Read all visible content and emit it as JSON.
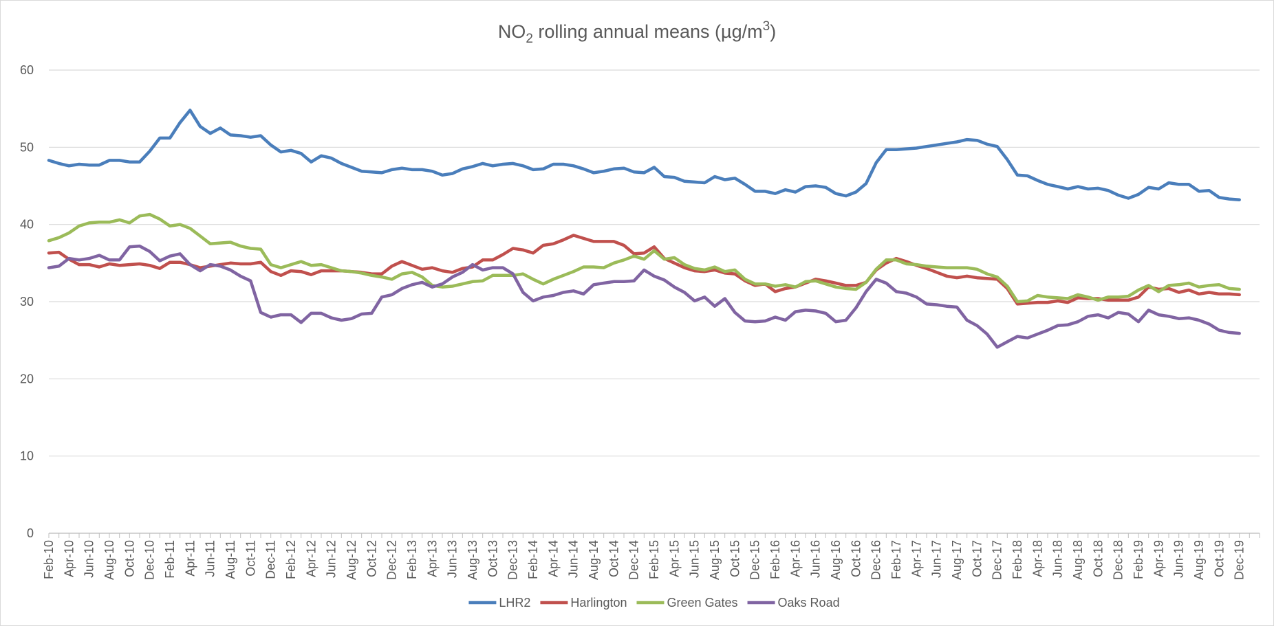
{
  "chart_data": {
    "type": "line",
    "title": [
      "NO",
      "2",
      " rolling annual means (µg/m",
      "3",
      ")"
    ],
    "categories": [
      "Feb-10",
      null,
      "Apr-10",
      null,
      "Jun-10",
      null,
      "Aug-10",
      null,
      "Oct-10",
      null,
      "Dec-10",
      null,
      "Feb-11",
      null,
      "Apr-11",
      null,
      "Jun-11",
      null,
      "Aug-11",
      null,
      "Oct-11",
      null,
      "Dec-11",
      null,
      "Feb-12",
      null,
      "Apr-12",
      null,
      "Jun-12",
      null,
      "Aug-12",
      null,
      "Oct-12",
      null,
      "Dec-12",
      null,
      "Feb-13",
      null,
      "Apr-13",
      null,
      "Jun-13",
      null,
      "Aug-13",
      null,
      "Oct-13",
      null,
      "Dec-13",
      null,
      "Feb-14",
      null,
      "Apr-14",
      null,
      "Jun-14",
      null,
      "Aug-14",
      null,
      "Oct-14",
      null,
      "Dec-14",
      null,
      "Feb-15",
      null,
      "Apr-15",
      null,
      "Jun-15",
      null,
      "Aug-15",
      null,
      "Oct-15",
      null,
      "Dec-15",
      null,
      "Feb-16",
      null,
      "Apr-16",
      null,
      "Jun-16",
      null,
      "Aug-16",
      null,
      "Oct-16",
      null,
      "Dec-16",
      null,
      "Feb-17",
      null,
      "Apr-17",
      null,
      "Jun-17",
      null,
      "Aug-17",
      null,
      "Oct-17",
      null,
      "Dec-17",
      null,
      "Feb-18",
      null,
      "Apr-18",
      null,
      "Jun-18",
      null,
      "Aug-18",
      null,
      "Oct-18",
      null,
      "Dec-18",
      null,
      "Feb-19",
      null,
      "Apr-19",
      null,
      "Jun-19",
      null,
      "Aug-19",
      null,
      "Oct-19",
      null,
      "Dec-19"
    ],
    "series": [
      {
        "name": "LHR2",
        "color": "#4a7ebb",
        "values": [
          48.3,
          47.9,
          47.6,
          47.8,
          47.7,
          47.7,
          48.3,
          48.3,
          48.1,
          48.1,
          49.5,
          51.2,
          51.2,
          53.2,
          54.8,
          52.7,
          51.8,
          52.5,
          51.6,
          51.5,
          51.3,
          51.5,
          50.3,
          49.4,
          49.6,
          49.2,
          48.1,
          48.9,
          48.6,
          47.9,
          47.4,
          46.9,
          46.8,
          46.7,
          47.1,
          47.3,
          47.1,
          47.1,
          46.9,
          46.4,
          46.6,
          47.2,
          47.5,
          47.9,
          47.6,
          47.8,
          47.9,
          47.6,
          47.1,
          47.2,
          47.8,
          47.8,
          47.6,
          47.2,
          46.7,
          46.9,
          47.2,
          47.3,
          46.8,
          46.7,
          47.4,
          46.2,
          46.1,
          45.6,
          45.5,
          45.4,
          46.2,
          45.8,
          46.0,
          45.2,
          44.3,
          44.3,
          44.0,
          44.5,
          44.2,
          44.9,
          45.0,
          44.8,
          44.0,
          43.7,
          44.2,
          45.3,
          48.0,
          49.7,
          49.7,
          49.8,
          49.9,
          50.1,
          50.3,
          50.5,
          50.7,
          51.0,
          50.9,
          50.4,
          50.1,
          48.4,
          46.4,
          46.3,
          45.7,
          45.2,
          44.9,
          44.6,
          44.9,
          44.6,
          44.7,
          44.4,
          43.8,
          43.4,
          43.9,
          44.8,
          44.6,
          45.4,
          45.2,
          45.2,
          44.3,
          44.4,
          43.5,
          43.3,
          43.2
        ]
      },
      {
        "name": "Harlington",
        "color": "#c0504d",
        "values": [
          36.3,
          36.4,
          35.5,
          34.8,
          34.8,
          34.5,
          34.9,
          34.7,
          34.8,
          34.9,
          34.7,
          34.3,
          35.1,
          35.1,
          34.8,
          34.4,
          34.6,
          34.8,
          35.0,
          34.9,
          34.9,
          35.1,
          33.9,
          33.4,
          34.0,
          33.9,
          33.5,
          34.0,
          34.0,
          34.0,
          33.9,
          33.8,
          33.6,
          33.6,
          34.6,
          35.2,
          34.7,
          34.2,
          34.4,
          34.0,
          33.8,
          34.3,
          34.5,
          35.4,
          35.4,
          36.1,
          36.9,
          36.7,
          36.3,
          37.3,
          37.5,
          38.0,
          38.6,
          38.2,
          37.8,
          37.8,
          37.8,
          37.3,
          36.2,
          36.3,
          37.1,
          35.6,
          35.0,
          34.4,
          34.0,
          33.9,
          34.1,
          33.7,
          33.6,
          32.7,
          32.1,
          32.3,
          31.3,
          31.7,
          31.9,
          32.4,
          32.9,
          32.7,
          32.4,
          32.1,
          32.1,
          32.5,
          34.1,
          35.0,
          35.6,
          35.2,
          34.7,
          34.3,
          33.8,
          33.3,
          33.1,
          33.3,
          33.1,
          33.0,
          32.9,
          31.7,
          29.7,
          29.8,
          29.9,
          29.9,
          30.1,
          29.9,
          30.5,
          30.4,
          30.4,
          30.2,
          30.2,
          30.2,
          30.6,
          31.9,
          31.6,
          31.7,
          31.2,
          31.5,
          31.0,
          31.2,
          31.0,
          31.0,
          30.9
        ]
      },
      {
        "name": "Green Gates",
        "color": "#9bbb59",
        "values": [
          37.9,
          38.3,
          38.9,
          39.8,
          40.2,
          40.3,
          40.3,
          40.6,
          40.2,
          41.1,
          41.3,
          40.7,
          39.8,
          40.0,
          39.5,
          38.5,
          37.5,
          37.6,
          37.7,
          37.2,
          36.9,
          36.8,
          34.8,
          34.4,
          34.8,
          35.2,
          34.7,
          34.8,
          34.4,
          34.0,
          33.9,
          33.7,
          33.4,
          33.2,
          32.9,
          33.6,
          33.8,
          33.2,
          32.1,
          31.9,
          32.0,
          32.3,
          32.6,
          32.7,
          33.4,
          33.4,
          33.4,
          33.6,
          32.9,
          32.3,
          32.9,
          33.4,
          33.9,
          34.5,
          34.5,
          34.4,
          35.0,
          35.4,
          35.9,
          35.5,
          36.6,
          35.5,
          35.7,
          34.8,
          34.3,
          34.1,
          34.5,
          33.9,
          34.1,
          32.9,
          32.3,
          32.3,
          32.0,
          32.2,
          31.9,
          32.6,
          32.7,
          32.3,
          31.9,
          31.7,
          31.6,
          32.5,
          34.2,
          35.4,
          35.4,
          34.9,
          34.8,
          34.6,
          34.5,
          34.4,
          34.4,
          34.4,
          34.2,
          33.6,
          33.2,
          32.0,
          30.0,
          30.1,
          30.8,
          30.6,
          30.5,
          30.4,
          30.9,
          30.6,
          30.2,
          30.6,
          30.6,
          30.7,
          31.5,
          32.1,
          31.3,
          32.1,
          32.2,
          32.4,
          31.9,
          32.1,
          32.2,
          31.7,
          31.6
        ]
      },
      {
        "name": "Oaks Road",
        "color": "#8064a2",
        "values": [
          34.4,
          34.6,
          35.6,
          35.4,
          35.6,
          36.0,
          35.4,
          35.4,
          37.1,
          37.2,
          36.5,
          35.3,
          35.9,
          36.2,
          34.8,
          34.0,
          34.8,
          34.6,
          34.1,
          33.3,
          32.7,
          28.6,
          28.0,
          28.3,
          28.3,
          27.3,
          28.5,
          28.5,
          27.9,
          27.6,
          27.8,
          28.4,
          28.5,
          30.6,
          30.9,
          31.7,
          32.2,
          32.5,
          31.9,
          32.3,
          33.2,
          33.8,
          34.8,
          34.1,
          34.4,
          34.4,
          33.6,
          31.2,
          30.1,
          30.6,
          30.8,
          31.2,
          31.4,
          31.0,
          32.2,
          32.4,
          32.6,
          32.6,
          32.7,
          34.1,
          33.3,
          32.8,
          31.9,
          31.2,
          30.1,
          30.6,
          29.4,
          30.4,
          28.6,
          27.5,
          27.4,
          27.5,
          28.0,
          27.6,
          28.7,
          28.9,
          28.8,
          28.5,
          27.4,
          27.6,
          29.2,
          31.3,
          32.9,
          32.4,
          31.3,
          31.1,
          30.6,
          29.7,
          29.6,
          29.4,
          29.3,
          27.6,
          26.9,
          25.8,
          24.1,
          24.8,
          25.5,
          25.3,
          25.8,
          26.3,
          26.9,
          27.0,
          27.4,
          28.1,
          28.3,
          27.9,
          28.6,
          28.4,
          27.4,
          28.9,
          28.3,
          28.1,
          27.8,
          27.9,
          27.6,
          27.1,
          26.3,
          26.0,
          25.9
        ]
      }
    ],
    "ylim": [
      0,
      60
    ],
    "yticks": [
      0,
      10,
      20,
      30,
      40,
      50,
      60
    ],
    "grid": true,
    "legend": "bottom"
  }
}
